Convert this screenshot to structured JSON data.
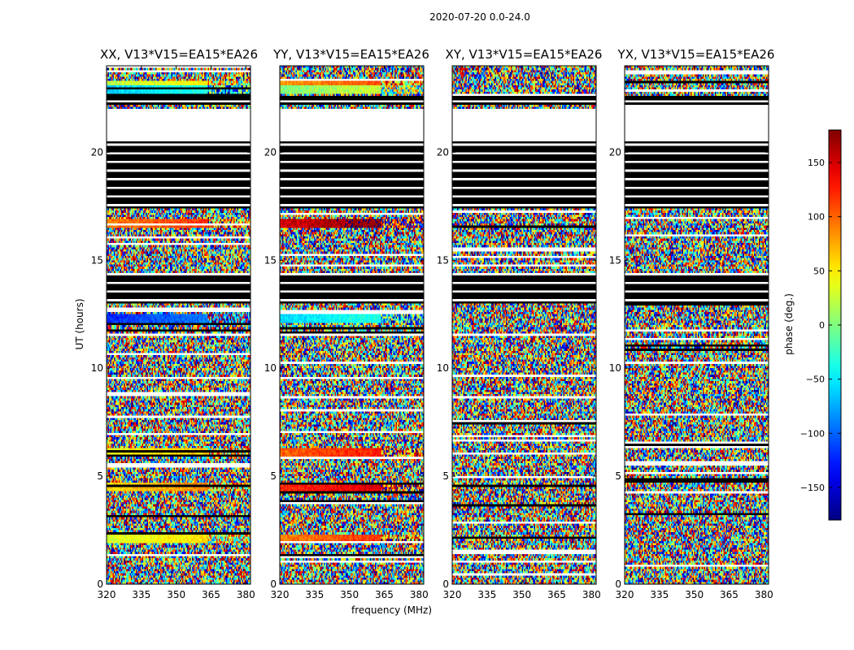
{
  "chart_data": {
    "type": "heatmap",
    "suptitle": "2020-07-20 0.0-24.0",
    "xlabel": "frequency (MHz)",
    "ylabel": "UT (hours)",
    "xlim": [
      320,
      382
    ],
    "ylim": [
      0,
      24
    ],
    "xticks": [
      320,
      335,
      350,
      365,
      380
    ],
    "yticks": [
      0,
      5,
      10,
      15,
      20
    ],
    "panels": [
      {
        "title": "XX, V13*V15=EA15*EA26",
        "pol": "XX"
      },
      {
        "title": "YY, V13*V15=EA15*EA26",
        "pol": "YY"
      },
      {
        "title": "XY, V13*V15=EA15*EA26",
        "pol": "XY"
      },
      {
        "title": "YX, V13*V15=EA15*EA26",
        "pol": "YX"
      }
    ],
    "colorbar": {
      "label": "phase (deg.)",
      "range": [
        -180,
        180
      ],
      "ticks": [
        -150,
        -100,
        -50,
        0,
        50,
        100,
        150
      ],
      "colormap": "jet"
    },
    "flagged_ut_ranges": [
      [
        17.4,
        20.5
      ],
      [
        13.0,
        14.4
      ],
      [
        22.2,
        22.6
      ]
    ],
    "coherent_ut_bands": [
      {
        "ut": 23.1,
        "phase": 20
      },
      {
        "ut": 22.9,
        "phase": -60
      },
      {
        "ut": 16.7,
        "phase": 90
      },
      {
        "ut": 12.3,
        "phase": -120
      },
      {
        "ut": 6.1,
        "phase": 40
      },
      {
        "ut": 4.5,
        "phase": 60
      },
      {
        "ut": 2.1,
        "phase": 30
      }
    ]
  }
}
